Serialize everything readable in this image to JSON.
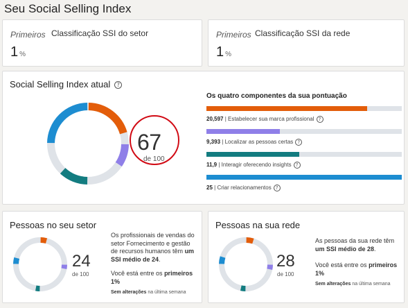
{
  "page_title": "Seu Social Selling Index",
  "rankings": [
    {
      "qualifier": "Primeiros",
      "label": "Classificação SSI do setor",
      "value": "1",
      "unit": "%"
    },
    {
      "qualifier": "Primeiros",
      "label": "Classificação SSI da rede",
      "value": "1",
      "unit": "%"
    }
  ],
  "ssi": {
    "title": "Social Selling Index atual",
    "score": "67",
    "of_label": "de 100",
    "components_title": "Os quatro componentes da sua pontuação",
    "components": [
      {
        "value": "20,597",
        "label": "Estabelecer sua marca profissional",
        "score": 20.597,
        "max": 25,
        "color": "#e35d0a"
      },
      {
        "value": "9,393",
        "label": "Localizar as pessoas certas",
        "score": 9.393,
        "max": 25,
        "color": "#8f7fe8"
      },
      {
        "value": "11,9",
        "label": "Interagir oferecendo insights",
        "score": 11.9,
        "max": 25,
        "color": "#137c80"
      },
      {
        "value": "25",
        "label": "Criar relacionamentos",
        "score": 25,
        "max": 25,
        "color": "#1d8dd1"
      }
    ]
  },
  "sector": {
    "title": "Pessoas no seu setor",
    "score": "24",
    "of_label": "de 100",
    "text_parts": [
      "Os profissionais de vendas do setor Fornecimento e gestão de recursos humanos têm ",
      "um SSI médio de 24",
      "."
    ],
    "rank_parts": [
      "Você está entre os ",
      "primeiros",
      " 1%"
    ],
    "note_bold": "Sem alterações",
    "note_rest": " na última semana"
  },
  "network": {
    "title": "Pessoas na sua rede",
    "score": "28",
    "of_label": "de 100",
    "text_parts": [
      "As pessoas da sua rede têm ",
      "um SSI médio de 28",
      "."
    ],
    "rank_parts": [
      "Você está entre os ",
      "primeiros",
      " 1%"
    ],
    "note_bold": "Sem alterações",
    "note_rest": " na última semana"
  }
}
